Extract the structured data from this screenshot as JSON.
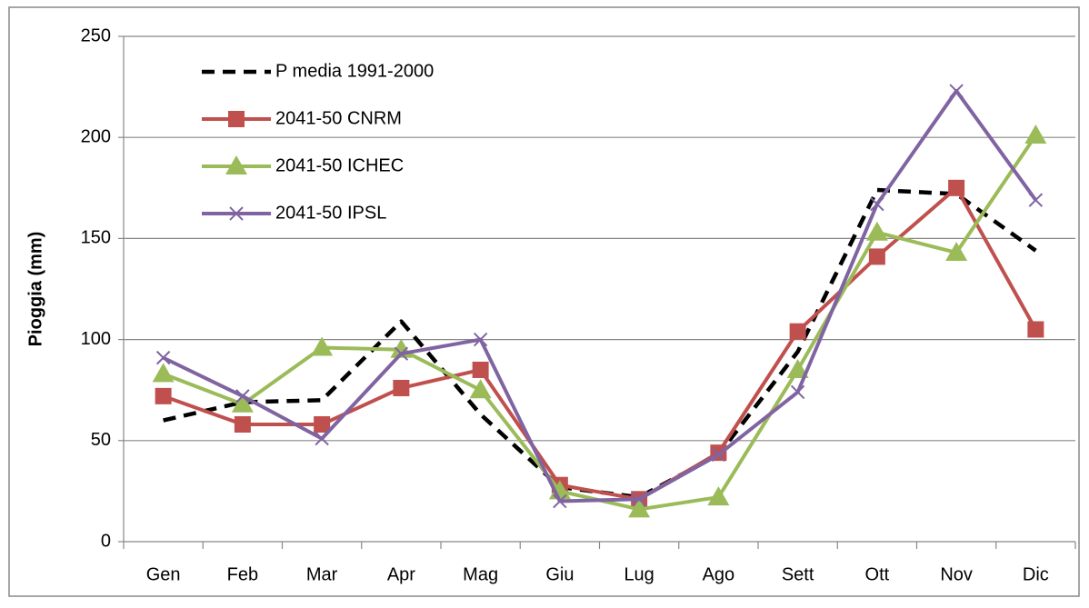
{
  "chart_data": {
    "type": "line",
    "y_axis_label": "Pioggia (mm)",
    "categories": [
      "Gen",
      "Feb",
      "Mar",
      "Apr",
      "Mag",
      "Giu",
      "Lug",
      "Ago",
      "Sett",
      "Ott",
      "Nov",
      "Dic"
    ],
    "series": [
      {
        "name": "P media 1991-2000",
        "color": "#000000",
        "dashed": true,
        "marker": "none",
        "values": [
          60,
          69,
          70,
          109,
          63,
          27,
          22,
          43,
          94,
          174,
          172,
          144
        ]
      },
      {
        "name": "2041-50 CNRM",
        "color": "#c0504d",
        "dashed": false,
        "marker": "square",
        "values": [
          72,
          58,
          58,
          76,
          85,
          28,
          21,
          44,
          104,
          141,
          175,
          105
        ]
      },
      {
        "name": "2041-50 ICHEC",
        "color": "#9bbb59",
        "dashed": false,
        "marker": "triangle",
        "values": [
          83,
          68,
          96,
          95,
          75,
          25,
          16,
          22,
          85,
          153,
          143,
          201
        ]
      },
      {
        "name": "2041-50 IPSL",
        "color": "#8064a2",
        "dashed": false,
        "marker": "x",
        "values": [
          91,
          72,
          51,
          93,
          100,
          20,
          21,
          43,
          74,
          167,
          223,
          169
        ]
      }
    ],
    "ylim": [
      0,
      250
    ],
    "yticks": [
      0,
      50,
      100,
      150,
      200,
      250
    ],
    "grid": true,
    "legend": "top-left"
  }
}
